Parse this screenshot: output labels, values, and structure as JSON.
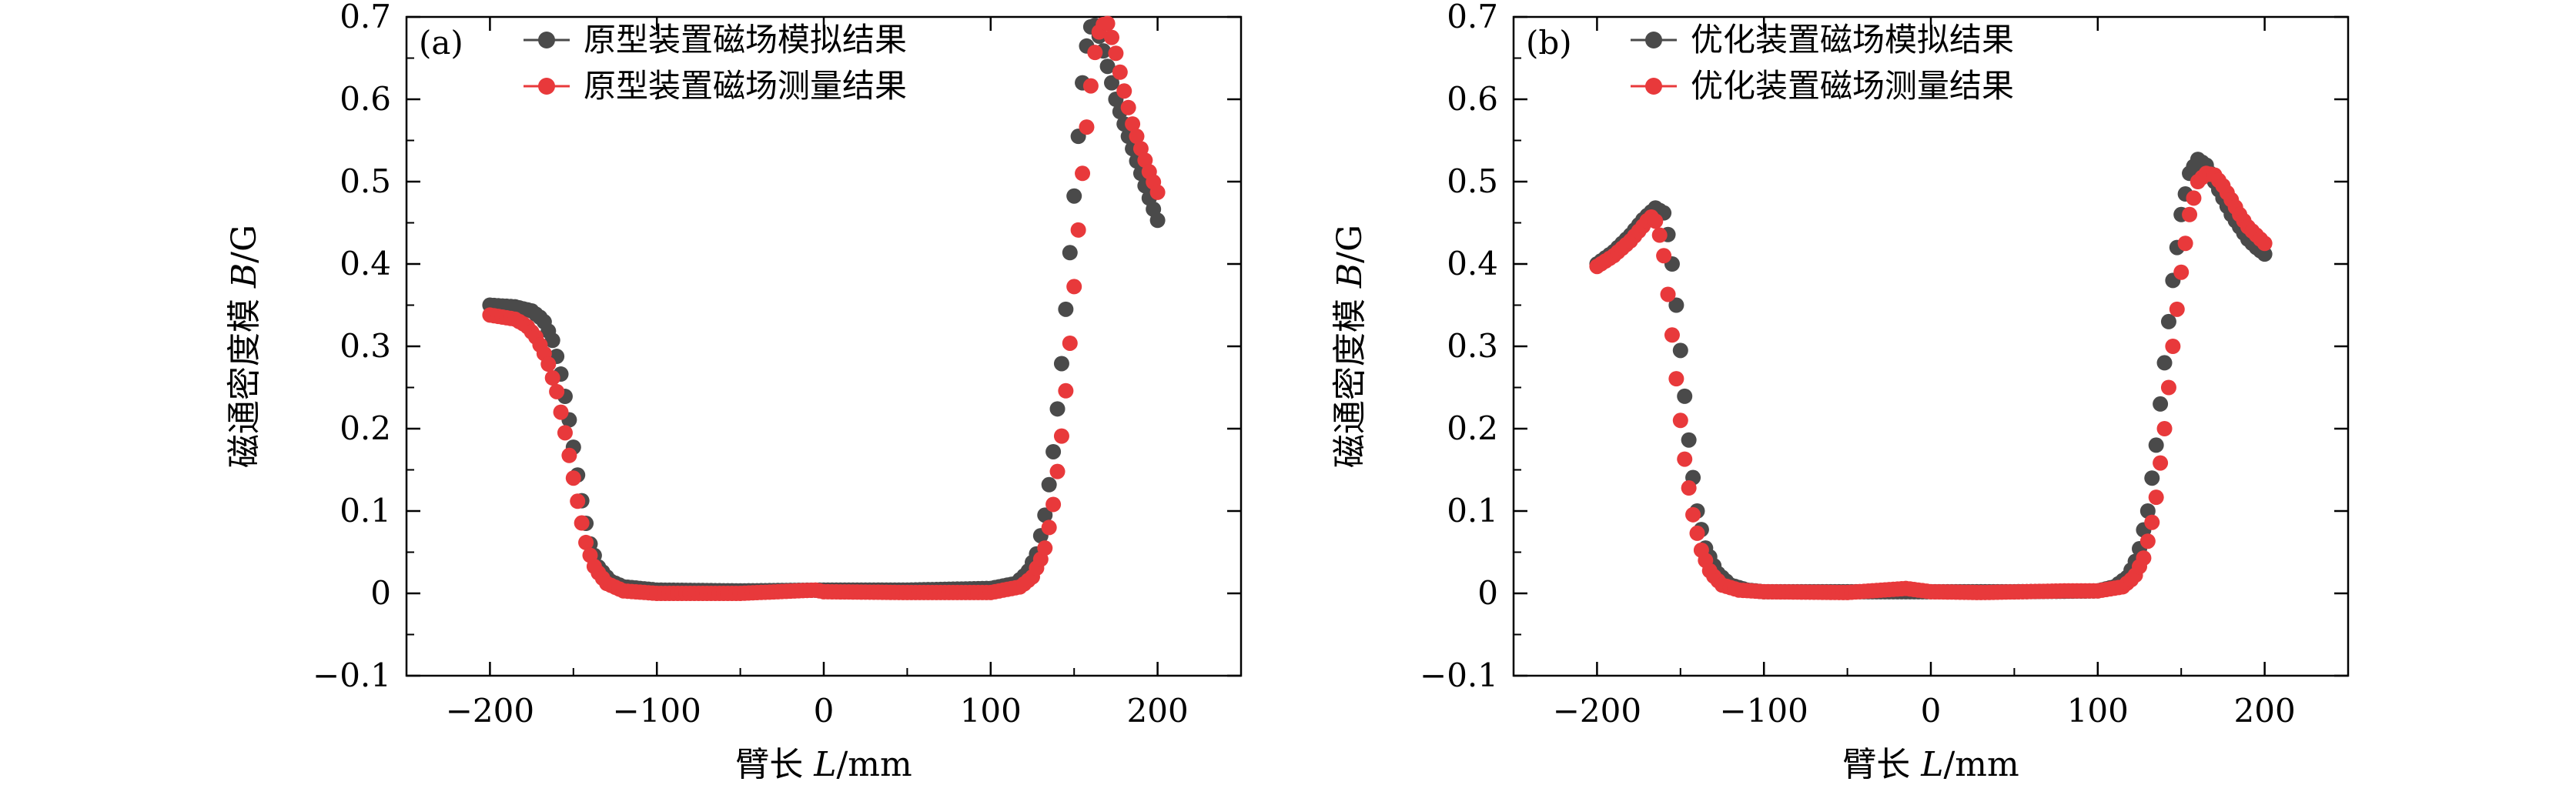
{
  "chart_data": [
    {
      "type": "scatter",
      "panel_label": "(a)",
      "xlabel_text": "臂长 ",
      "xlabel_var": "L",
      "xlabel_unit": "/mm",
      "ylabel_text": "磁通密度模 ",
      "ylabel_var": "B",
      "ylabel_unit": "/G",
      "xlim": [
        -250,
        250
      ],
      "ylim": [
        -0.1,
        0.7
      ],
      "xticks": [
        -200,
        -100,
        0,
        100,
        200
      ],
      "xtick_labels": [
        "−200",
        "−100",
        "0",
        "100",
        "200"
      ],
      "yticks": [
        -0.1,
        0,
        0.1,
        0.2,
        0.3,
        0.4,
        0.5,
        0.6,
        0.7
      ],
      "ytick_labels": [
        "−0.1",
        "0",
        "0.1",
        "0.2",
        "0.3",
        "0.4",
        "0.5",
        "0.6",
        "0.7"
      ],
      "legend_position": "top-left",
      "series": [
        {
          "name": "原型装置磁场模拟结果",
          "color": "#4a4a4a",
          "points": [
            [
              -200,
              0.35
            ],
            [
              -185,
              0.348
            ],
            [
              -175,
              0.343
            ],
            [
              -168,
              0.332
            ],
            [
              -162,
              0.305
            ],
            [
              -157,
              0.262
            ],
            [
              -152,
              0.205
            ],
            [
              -148,
              0.15
            ],
            [
              -144,
              0.1
            ],
            [
              -140,
              0.06
            ],
            [
              -135,
              0.032
            ],
            [
              -128,
              0.015
            ],
            [
              -120,
              0.008
            ],
            [
              -100,
              0.004
            ],
            [
              -50,
              0.003
            ],
            [
              0,
              0.004
            ],
            [
              50,
              0.004
            ],
            [
              100,
              0.006
            ],
            [
              115,
              0.012
            ],
            [
              122,
              0.025
            ],
            [
              128,
              0.05
            ],
            [
              133,
              0.1
            ],
            [
              138,
              0.18
            ],
            [
              143,
              0.29
            ],
            [
              147,
              0.4
            ],
            [
              151,
              0.51
            ],
            [
              154,
              0.6
            ],
            [
              157,
              0.66
            ],
            [
              160,
              0.688
            ],
            [
              163,
              0.69
            ],
            [
              166,
              0.67
            ],
            [
              170,
              0.64
            ],
            [
              175,
              0.6
            ],
            [
              180,
              0.57
            ],
            [
              185,
              0.54
            ],
            [
              190,
              0.51
            ],
            [
              195,
              0.48
            ],
            [
              200,
              0.453
            ]
          ]
        },
        {
          "name": "原型装置磁场测量结果",
          "color": "#e8393b",
          "points": [
            [
              -200,
              0.338
            ],
            [
              -185,
              0.333
            ],
            [
              -178,
              0.325
            ],
            [
              -172,
              0.31
            ],
            [
              -166,
              0.285
            ],
            [
              -160,
              0.245
            ],
            [
              -155,
              0.195
            ],
            [
              -150,
              0.14
            ],
            [
              -146,
              0.095
            ],
            [
              -142,
              0.057
            ],
            [
              -137,
              0.03
            ],
            [
              -130,
              0.012
            ],
            [
              -120,
              0.003
            ],
            [
              -100,
              0.0
            ],
            [
              -50,
              0.0
            ],
            [
              -5,
              0.004
            ],
            [
              0,
              0.002
            ],
            [
              50,
              0.001
            ],
            [
              100,
              0.001
            ],
            [
              118,
              0.008
            ],
            [
              125,
              0.02
            ],
            [
              132,
              0.05
            ],
            [
              137,
              0.1
            ],
            [
              142,
              0.18
            ],
            [
              147,
              0.29
            ],
            [
              151,
              0.4
            ],
            [
              155,
              0.51
            ],
            [
              159,
              0.6
            ],
            [
              163,
              0.665
            ],
            [
              166,
              0.69
            ],
            [
              170,
              0.692
            ],
            [
              174,
              0.665
            ],
            [
              180,
              0.61
            ],
            [
              185,
              0.57
            ],
            [
              190,
              0.54
            ],
            [
              195,
              0.512
            ],
            [
              200,
              0.487
            ]
          ]
        }
      ]
    },
    {
      "type": "scatter",
      "panel_label": "(b)",
      "xlabel_text": "臂长 ",
      "xlabel_var": "L",
      "xlabel_unit": "/mm",
      "ylabel_text": "磁通密度模 ",
      "ylabel_var": "B",
      "ylabel_unit": "/G",
      "xlim": [
        -250,
        250
      ],
      "ylim": [
        -0.1,
        0.7
      ],
      "xticks": [
        -200,
        -100,
        0,
        100,
        200
      ],
      "xtick_labels": [
        "−200",
        "−100",
        "0",
        "100",
        "200"
      ],
      "yticks": [
        -0.1,
        0,
        0.1,
        0.2,
        0.3,
        0.4,
        0.5,
        0.6,
        0.7
      ],
      "ytick_labels": [
        "−0.1",
        "0",
        "0.1",
        "0.2",
        "0.3",
        "0.4",
        "0.5",
        "0.6",
        "0.7"
      ],
      "legend_position": "top-left",
      "series": [
        {
          "name": "优化装置磁场模拟结果",
          "color": "#4a4a4a",
          "points": [
            [
              -200,
              0.4
            ],
            [
              -190,
              0.415
            ],
            [
              -180,
              0.435
            ],
            [
              -172,
              0.455
            ],
            [
              -165,
              0.468
            ],
            [
              -160,
              0.462
            ],
            [
              -156,
              0.42
            ],
            [
              -152,
              0.34
            ],
            [
              -148,
              0.25
            ],
            [
              -144,
              0.165
            ],
            [
              -140,
              0.1
            ],
            [
              -135,
              0.055
            ],
            [
              -128,
              0.025
            ],
            [
              -120,
              0.01
            ],
            [
              -110,
              0.004
            ],
            [
              -100,
              0.002
            ],
            [
              -50,
              0.002
            ],
            [
              0,
              0.002
            ],
            [
              50,
              0.002
            ],
            [
              100,
              0.003
            ],
            [
              110,
              0.008
            ],
            [
              118,
              0.02
            ],
            [
              124,
              0.045
            ],
            [
              130,
              0.1
            ],
            [
              135,
              0.18
            ],
            [
              140,
              0.28
            ],
            [
              145,
              0.38
            ],
            [
              150,
              0.46
            ],
            [
              155,
              0.51
            ],
            [
              160,
              0.527
            ],
            [
              165,
              0.52
            ],
            [
              170,
              0.5
            ],
            [
              175,
              0.48
            ],
            [
              180,
              0.46
            ],
            [
              185,
              0.445
            ],
            [
              190,
              0.43
            ],
            [
              195,
              0.42
            ],
            [
              200,
              0.412
            ]
          ]
        },
        {
          "name": "优化装置磁场测量结果",
          "color": "#e8393b",
          "points": [
            [
              -200,
              0.397
            ],
            [
              -190,
              0.41
            ],
            [
              -180,
              0.428
            ],
            [
              -172,
              0.447
            ],
            [
              -168,
              0.458
            ],
            [
              -164,
              0.45
            ],
            [
              -160,
              0.41
            ],
            [
              -156,
              0.335
            ],
            [
              -152,
              0.25
            ],
            [
              -148,
              0.17
            ],
            [
              -143,
              0.1
            ],
            [
              -138,
              0.055
            ],
            [
              -132,
              0.025
            ],
            [
              -125,
              0.01
            ],
            [
              -115,
              0.004
            ],
            [
              -100,
              0.002
            ],
            [
              -50,
              0.001
            ],
            [
              -15,
              0.006
            ],
            [
              0,
              0.002
            ],
            [
              30,
              0.001
            ],
            [
              80,
              0.003
            ],
            [
              100,
              0.003
            ],
            [
              115,
              0.008
            ],
            [
              122,
              0.02
            ],
            [
              128,
              0.045
            ],
            [
              134,
              0.1
            ],
            [
              140,
              0.2
            ],
            [
              145,
              0.3
            ],
            [
              150,
              0.39
            ],
            [
              155,
              0.46
            ],
            [
              160,
              0.5
            ],
            [
              165,
              0.51
            ],
            [
              170,
              0.508
            ],
            [
              175,
              0.495
            ],
            [
              180,
              0.478
            ],
            [
              185,
              0.46
            ],
            [
              190,
              0.445
            ],
            [
              195,
              0.435
            ],
            [
              200,
              0.425
            ]
          ]
        }
      ]
    }
  ]
}
